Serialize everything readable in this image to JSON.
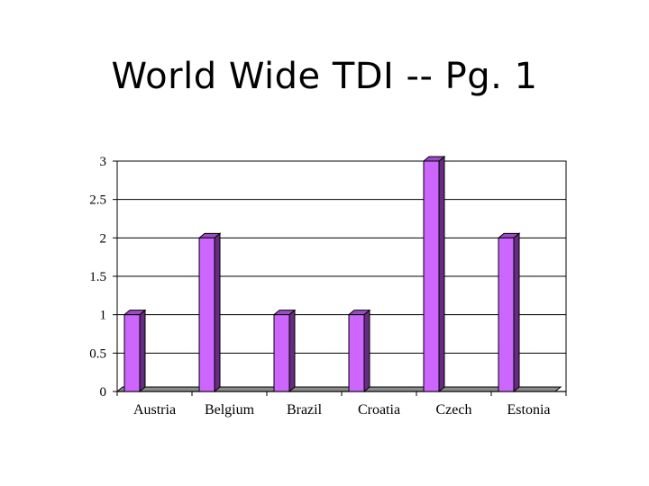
{
  "slide": {
    "title": "World Wide TDI -- Pg. 1"
  },
  "colors": {
    "bar_front": "#cc66ff",
    "bar_side": "#662c80",
    "bar_top": "#9a4dc0",
    "gridline": "#000000",
    "floor": "#8c8c8c"
  },
  "chart_data": {
    "type": "bar",
    "title": "",
    "xlabel": "",
    "ylabel": "",
    "categories": [
      "Austria",
      "Belgium",
      "Brazil",
      "Croatia",
      "Czech",
      "Estonia"
    ],
    "values": [
      1,
      2,
      1,
      1,
      3,
      2
    ],
    "ylim": [
      0,
      3
    ],
    "yticks": [
      "0",
      "0.5",
      "1",
      "1.5",
      "2",
      "2.5",
      "3"
    ],
    "grid": true,
    "legend": "none",
    "style": "3d"
  }
}
